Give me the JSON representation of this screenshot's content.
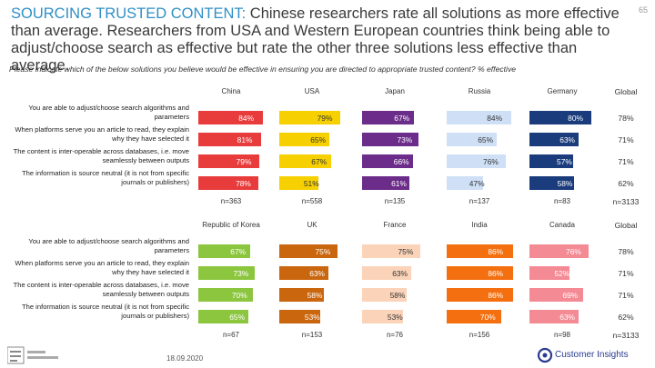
{
  "headline": {
    "lead": "SOURCING TRUSTED CONTENT:",
    "rest": " Chinese researchers rate all solutions as more effective than average. Researchers from USA and Western European countries think being able to adjust/choose search as effective but rate the other three solutions less effective than average."
  },
  "page_number": "65",
  "question": "Please indicate which of the below solutions you believe would be effective in ensuring you are directed to appropriate trusted content? % effective",
  "row_labels": [
    "You are able to adjust/choose search algorithms and parameters",
    "When platforms serve you an article to read, they explain why they have selected it",
    "The content is inter-operable across databases, i.e. move seamlessly between outputs",
    "The information is source neutral (it is not from specific journals or publishers)"
  ],
  "footer": {
    "date": "18.09.2020",
    "left_logo": "SENSE ABOUT SCIENCE",
    "right_logo": "Customer Insights"
  },
  "colors": {
    "China": "#e83c3c",
    "USA": "#f6d000",
    "Japan": "#6b2c8a",
    "Russia": "#cfe0f6",
    "Germany": "#1a3b7c",
    "Republic of Korea": "#8cc63f",
    "UK": "#c9660e",
    "France": "#fbd3b8",
    "India": "#f36f10",
    "Canada": "#f48a94"
  },
  "chart_data": [
    {
      "type": "bar",
      "title": "",
      "categories": [
        "You are able to adjust/choose search algorithms and parameters",
        "When platforms serve you an article to read, they explain why they have selected it",
        "The content is inter-operable across databases, i.e. move seamlessly between outputs",
        "The information is source neutral (it is not from specific journals or publishers)"
      ],
      "unit": "%",
      "series": [
        {
          "name": "China",
          "values": [
            84,
            81,
            79,
            78
          ],
          "labels": [
            "84%",
            "81%",
            "79%",
            "78%"
          ],
          "n": "n=363"
        },
        {
          "name": "USA",
          "values": [
            79,
            65,
            67,
            51
          ],
          "labels": [
            "79%",
            "65%",
            "67%",
            "51%"
          ],
          "n": "n=558"
        },
        {
          "name": "Japan",
          "values": [
            67,
            73,
            66,
            61
          ],
          "labels": [
            "67%",
            "73%",
            "66%",
            "61%"
          ],
          "n": "n=135"
        },
        {
          "name": "Russia",
          "values": [
            84,
            65,
            76,
            47
          ],
          "labels": [
            "84%",
            "65%",
            "76%",
            "47%"
          ],
          "n": "n=137"
        },
        {
          "name": "Germany",
          "values": [
            80,
            63,
            57,
            58
          ],
          "labels": [
            "80%",
            "63%",
            "57%",
            "58%"
          ],
          "n": "n=83"
        }
      ],
      "global": {
        "name": "Global",
        "labels": [
          "78%",
          "71%",
          "71%",
          "62%"
        ],
        "n": "n=3133"
      }
    },
    {
      "type": "bar",
      "title": "",
      "categories": [
        "You are able to adjust/choose search algorithms and parameters",
        "When platforms serve you an article to read, they explain why they have selected it",
        "The content is inter-operable across databases, i.e. move seamlessly between outputs",
        "The information is source neutral (it is not from specific journals or publishers)"
      ],
      "unit": "%",
      "series": [
        {
          "name": "Republic of Korea",
          "values": [
            67,
            73,
            70,
            65
          ],
          "labels": [
            "67%",
            "73%",
            "70%",
            "65%"
          ],
          "n": "n=67"
        },
        {
          "name": "UK",
          "values": [
            75,
            63,
            58,
            53
          ],
          "labels": [
            "75%",
            "63%",
            "58%",
            "53%"
          ],
          "n": "n=153"
        },
        {
          "name": "France",
          "values": [
            75,
            63,
            58,
            53
          ],
          "labels": [
            "75%",
            "63%",
            "58%",
            "53%"
          ],
          "n": "n=76"
        },
        {
          "name": "India",
          "values": [
            86,
            86,
            86,
            70
          ],
          "labels": [
            "86%",
            "86%",
            "86%",
            "70%"
          ],
          "n": "n=156"
        },
        {
          "name": "Canada",
          "values": [
            76,
            52,
            69,
            63
          ],
          "labels": [
            "76%",
            "52%",
            "69%",
            "63%"
          ],
          "n": "n=98"
        }
      ],
      "global": {
        "name": "Global",
        "labels": [
          "78%",
          "71%",
          "71%",
          "62%"
        ],
        "n": "n=3133"
      }
    }
  ]
}
